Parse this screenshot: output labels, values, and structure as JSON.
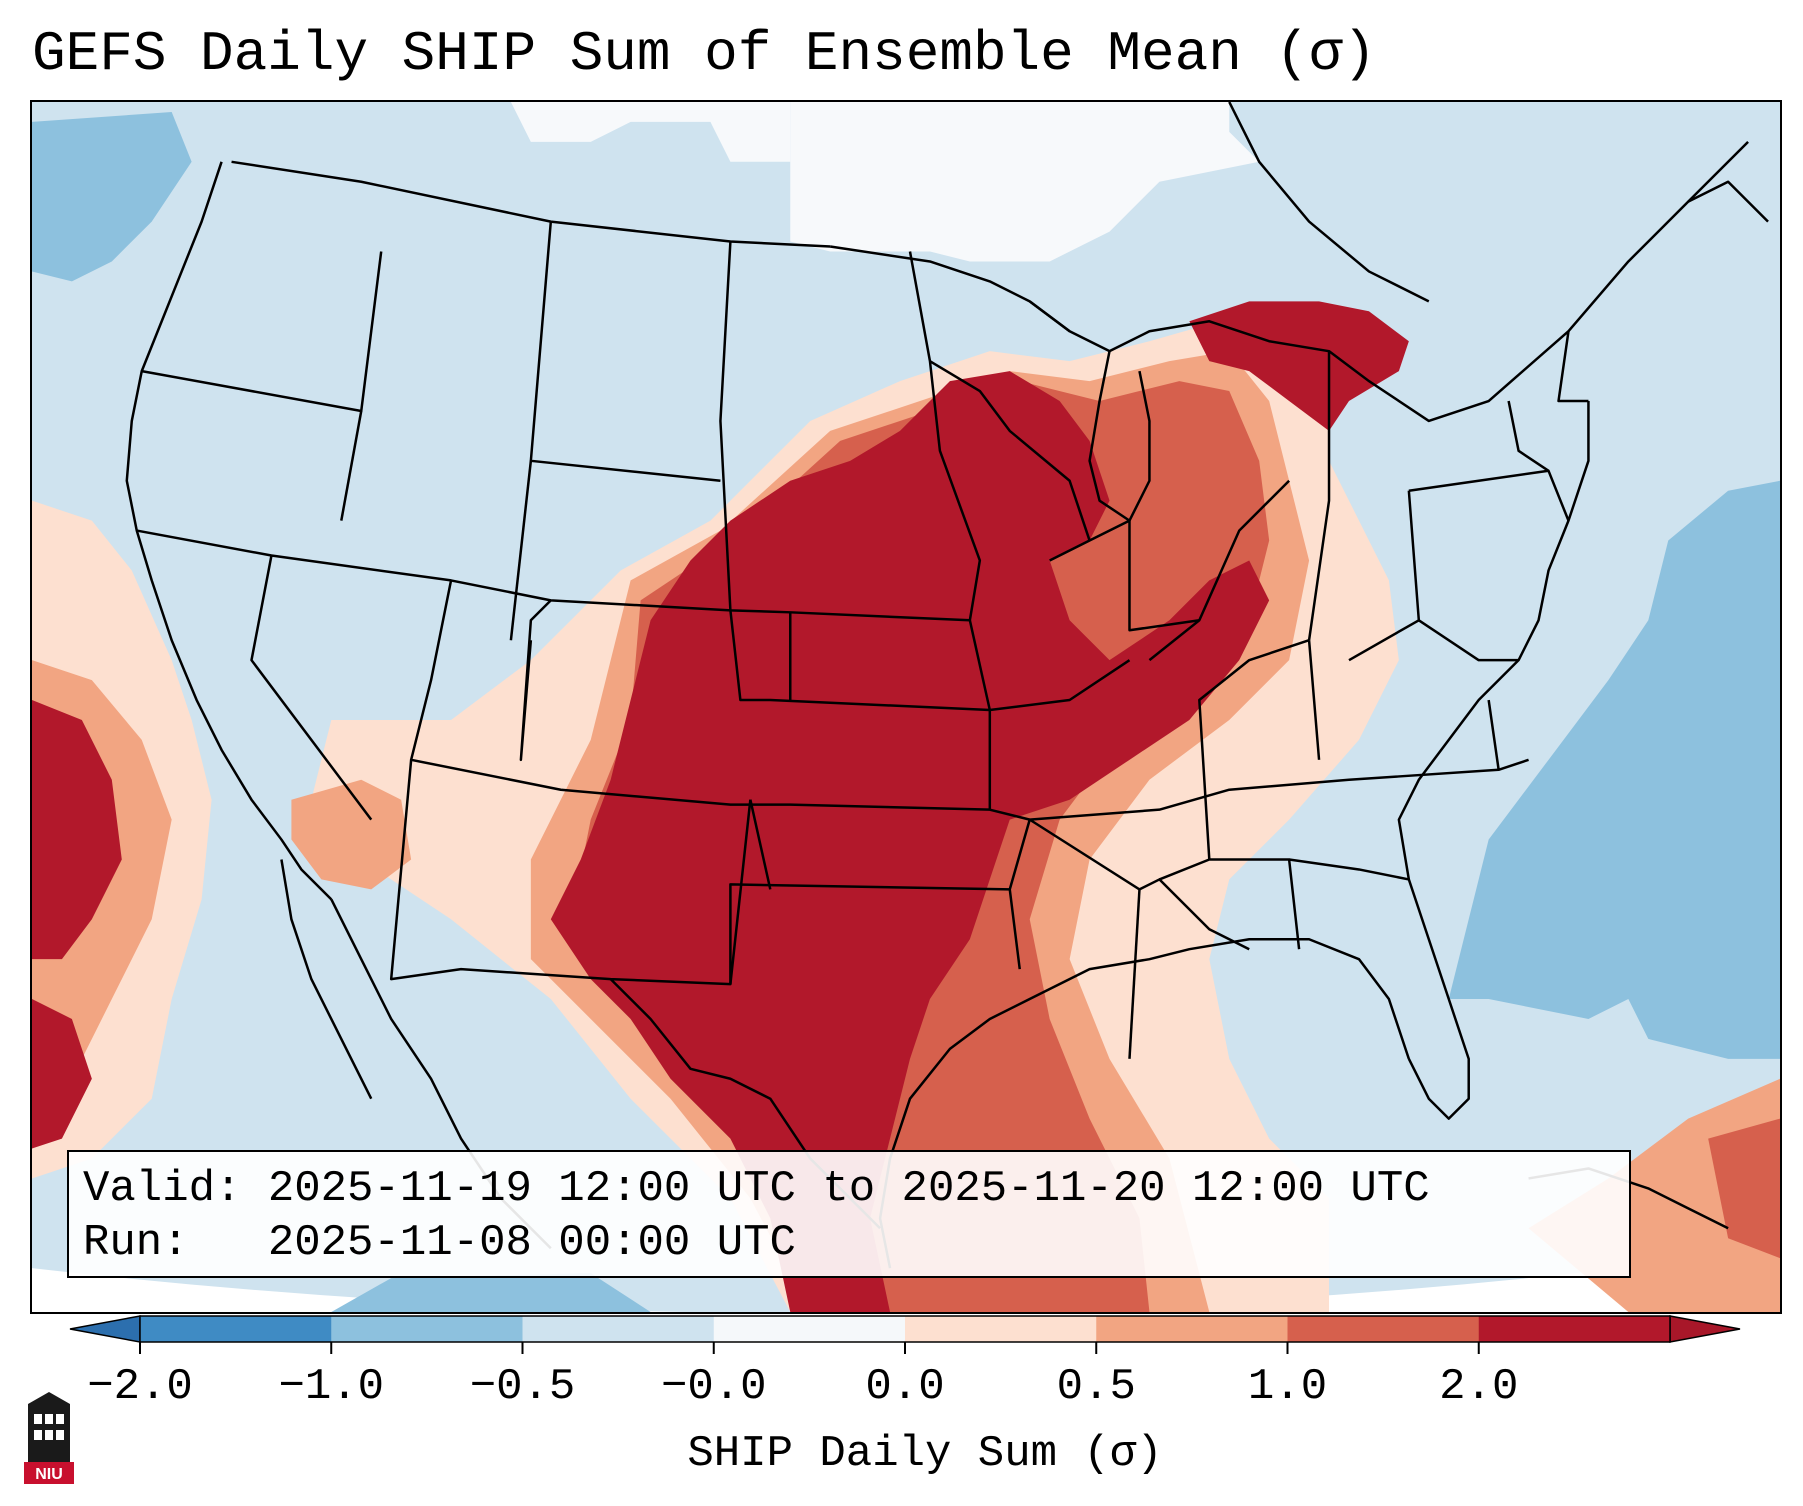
{
  "title": "GEFS Daily SHIP Sum of Ensemble Mean (σ)",
  "info": {
    "valid_label": "Valid:",
    "valid_value": "2025-11-19 12:00 UTC to 2025-11-20 12:00 UTC",
    "run_label": "Run:",
    "run_value": "2025-11-08 00:00 UTC"
  },
  "colorbar": {
    "label": "SHIP Daily Sum (σ)",
    "ticks": [
      "−2.0",
      "−1.0",
      "−0.5",
      "−0.0",
      "0.0",
      "0.5",
      "1.0",
      "2.0"
    ],
    "colors": [
      "#3f8bc4",
      "#8dc1de",
      "#cfe3ef",
      "#f5f8fa",
      "#fde0d0",
      "#f2a582",
      "#d6604d",
      "#b2182b"
    ],
    "extend_low_color": "#2c6fae",
    "extend_high_color": "#a81729"
  },
  "logo": {
    "text": "NIU",
    "color": "#c8102e"
  }
}
